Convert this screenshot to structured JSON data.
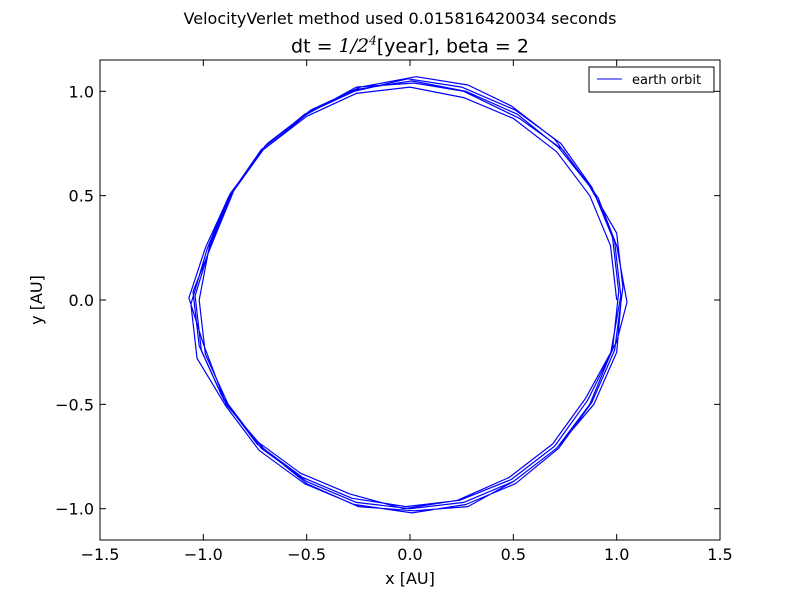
{
  "chart_data": {
    "type": "line",
    "suptitle": "VelocityVerlet method used 0.015816420034 seconds",
    "title": {
      "prefix": "dt = ",
      "math_base": "1/2",
      "math_exp": "4",
      "suffix": "[year], beta = 2"
    },
    "xlabel": "x [AU]",
    "ylabel": "y [AU]",
    "xlim": [
      -1.5,
      1.5
    ],
    "ylim": [
      -1.15,
      1.15
    ],
    "xticks": [
      {
        "value": -1.5,
        "label": "−1.5"
      },
      {
        "value": -1.0,
        "label": "−1.0"
      },
      {
        "value": -0.5,
        "label": "−0.5"
      },
      {
        "value": 0.0,
        "label": "0.0"
      },
      {
        "value": 0.5,
        "label": "0.5"
      },
      {
        "value": 1.0,
        "label": "1.0"
      },
      {
        "value": 1.5,
        "label": "1.5"
      }
    ],
    "yticks": [
      {
        "value": -1.0,
        "label": "−1.0"
      },
      {
        "value": -0.5,
        "label": "−0.5"
      },
      {
        "value": 0.0,
        "label": "0.0"
      },
      {
        "value": 0.5,
        "label": "0.5"
      },
      {
        "value": 1.0,
        "label": "1.0"
      }
    ],
    "grid": false,
    "legend_position": "top-right",
    "series": [
      {
        "name": "earth orbit",
        "color": "#0000ff",
        "x": [
          1.0,
          0.97,
          0.87,
          0.71,
          0.5,
          0.26,
          0.0,
          -0.26,
          -0.5,
          -0.71,
          -0.87,
          -0.97,
          -1.02,
          -0.99,
          -0.88,
          -0.72,
          -0.5,
          -0.26,
          0.0,
          0.26,
          0.5,
          0.71,
          0.87,
          0.97,
          1.02,
          0.99,
          0.89,
          0.72,
          0.52,
          0.27,
          0.01,
          -0.25,
          -0.49,
          -0.7,
          -0.86,
          -0.96,
          -1.04,
          -1.01,
          -0.9,
          -0.74,
          -0.52,
          -0.28,
          -0.02,
          0.24,
          0.49,
          0.7,
          0.86,
          0.98,
          1.01,
          0.98,
          0.88,
          0.73,
          0.51,
          0.25,
          -0.01,
          -0.27,
          -0.51,
          -0.72,
          -0.88,
          -0.98,
          -1.06,
          -1.03,
          -0.89,
          -0.73,
          -0.51,
          -0.27,
          0.01,
          0.27,
          0.51,
          0.72,
          0.88,
          0.99,
          1.03,
          1.0,
          0.86,
          0.7,
          0.49,
          0.28,
          0.03,
          -0.24,
          -0.48,
          -0.69,
          -0.85,
          -0.95,
          -1.05,
          -1.02,
          -0.91,
          -0.75,
          -0.53,
          -0.29,
          -0.03,
          0.23,
          0.48,
          0.69,
          0.85,
          1.0,
          1.05,
          1.0,
          0.91,
          0.74,
          0.53,
          0.26,
          0.02,
          -0.26,
          -0.5,
          -0.71,
          -0.87,
          -0.99,
          -1.07,
          -1.0,
          -0.89,
          -0.71,
          -0.5,
          -0.25,
          0.02,
          0.28,
          0.5,
          0.71,
          0.89,
          1.0,
          1.02
        ],
        "y": [
          0.0,
          0.26,
          0.5,
          0.71,
          0.87,
          0.97,
          1.02,
          0.99,
          0.88,
          0.72,
          0.5,
          0.26,
          0.0,
          -0.26,
          -0.5,
          -0.71,
          -0.87,
          -0.97,
          -1.0,
          -0.97,
          -0.87,
          -0.71,
          -0.5,
          -0.26,
          0.02,
          0.28,
          0.52,
          0.73,
          0.89,
          1.0,
          1.05,
          1.01,
          0.9,
          0.74,
          0.52,
          0.28,
          0.02,
          -0.24,
          -0.48,
          -0.69,
          -0.85,
          -0.95,
          -0.99,
          -0.96,
          -0.86,
          -0.7,
          -0.48,
          -0.24,
          0.04,
          0.3,
          0.54,
          0.75,
          0.91,
          1.02,
          1.06,
          1.0,
          0.89,
          0.72,
          0.49,
          0.25,
          -0.02,
          -0.28,
          -0.51,
          -0.72,
          -0.88,
          -0.98,
          -1.02,
          -0.98,
          -0.88,
          -0.71,
          -0.49,
          -0.24,
          0.06,
          0.32,
          0.56,
          0.77,
          0.93,
          1.03,
          1.07,
          1.02,
          0.91,
          0.75,
          0.53,
          0.29,
          0.04,
          -0.22,
          -0.46,
          -0.67,
          -0.83,
          -0.93,
          -1.0,
          -0.96,
          -0.85,
          -0.69,
          -0.47,
          -0.2,
          -0.01,
          0.26,
          0.49,
          0.72,
          0.87,
          1.0,
          1.04,
          1.02,
          0.89,
          0.72,
          0.51,
          0.25,
          0.01,
          -0.21,
          -0.5,
          -0.71,
          -0.88,
          -0.99,
          -1.01,
          -0.99,
          -0.87,
          -0.71,
          -0.5,
          -0.25,
          -0.02
        ]
      }
    ]
  }
}
